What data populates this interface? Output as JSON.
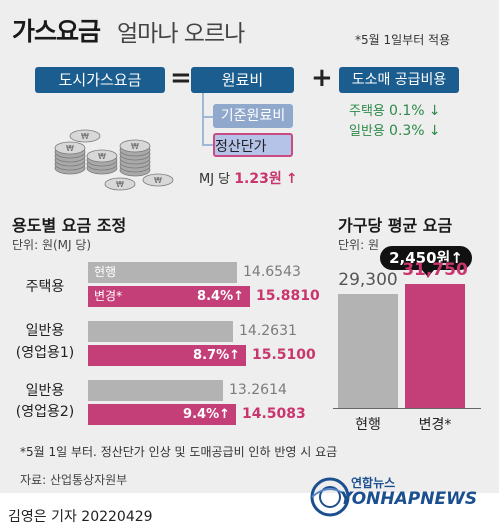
{
  "header": {
    "title_main": "가스요금",
    "title_sub": "얼마나 오르나",
    "effective_note": "*5월 1일부터 적용"
  },
  "formula": {
    "city_gas_fee": "도시가스요금",
    "equals": "=",
    "raw_material_cost": "원료비",
    "plus": "+",
    "wholesale_supply_cost": "도소매 공급비용",
    "base_raw_cost": "기준원료비",
    "settlement_price": "정산단가",
    "per_mj_prefix": "MJ 당",
    "per_mj_value": "1.23원",
    "wholesale_rates": [
      {
        "label": "주택용",
        "value": "0.1%"
      },
      {
        "label": "일반용",
        "value": "0.3%"
      }
    ],
    "coin_symbol": "₩"
  },
  "usage_section": {
    "title": "용도별 요금 조정",
    "unit": "단위: 원(MJ 당)",
    "legend_current": "현행",
    "legend_changed": "변경*",
    "arrow": "↑"
  },
  "household_section": {
    "title": "가구당 평균 요금",
    "unit": "단위: 원",
    "callout": "2,450원",
    "arrow": "↑",
    "label_current": "현행",
    "label_changed": "변경*"
  },
  "chart_data": [
    {
      "type": "bar",
      "orientation": "horizontal",
      "title": "용도별 요금 조정",
      "unit": "단위: 원(MJ 당)",
      "categories": [
        "주택용",
        "일반용 (영업용1)",
        "일반용 (영업용2)"
      ],
      "category_lines": [
        [
          "주택용"
        ],
        [
          "일반용",
          "(영업용1)"
        ],
        [
          "일반용",
          "(영업용2)"
        ]
      ],
      "series": [
        {
          "name": "현행",
          "values": [
            14.6543,
            14.2631,
            13.2614
          ]
        },
        {
          "name": "변경*",
          "values": [
            15.881,
            15.51,
            14.5083
          ]
        }
      ],
      "value_labels_current": [
        "14.6543",
        "14.2631",
        "13.2614"
      ],
      "value_labels_changed": [
        "15.8810",
        "15.5100",
        "14.5083"
      ],
      "change_percent": [
        8.4,
        8.7,
        9.4
      ],
      "change_labels": [
        "8.4%",
        "8.7%",
        "9.4%"
      ],
      "colors": {
        "current": "#b3b3b3",
        "changed": "#c43f78"
      }
    },
    {
      "type": "bar",
      "title": "가구당 평균 요금",
      "unit": "단위: 원",
      "categories": [
        "현행",
        "변경*"
      ],
      "values": [
        29300,
        31750
      ],
      "value_labels": [
        "29,300",
        "31,750"
      ],
      "annotation": "2,450원↑",
      "colors": [
        "#b3b3b3",
        "#c43f78"
      ]
    }
  ],
  "footnote": "*5월 1일 부터. 정산단가 인상 및 도매공급비 인하 반영 시 요금",
  "source": "자료: 산업통상자원부",
  "byline": "김영은 기자  20220429",
  "agency": {
    "name_ko": "연합뉴스",
    "name_en": "YONHAPNEWS"
  },
  "colors": {
    "navy": "#1b5d8f",
    "magenta": "#c43f78",
    "green": "#2f8a4a",
    "gray": "#b3b3b3"
  }
}
